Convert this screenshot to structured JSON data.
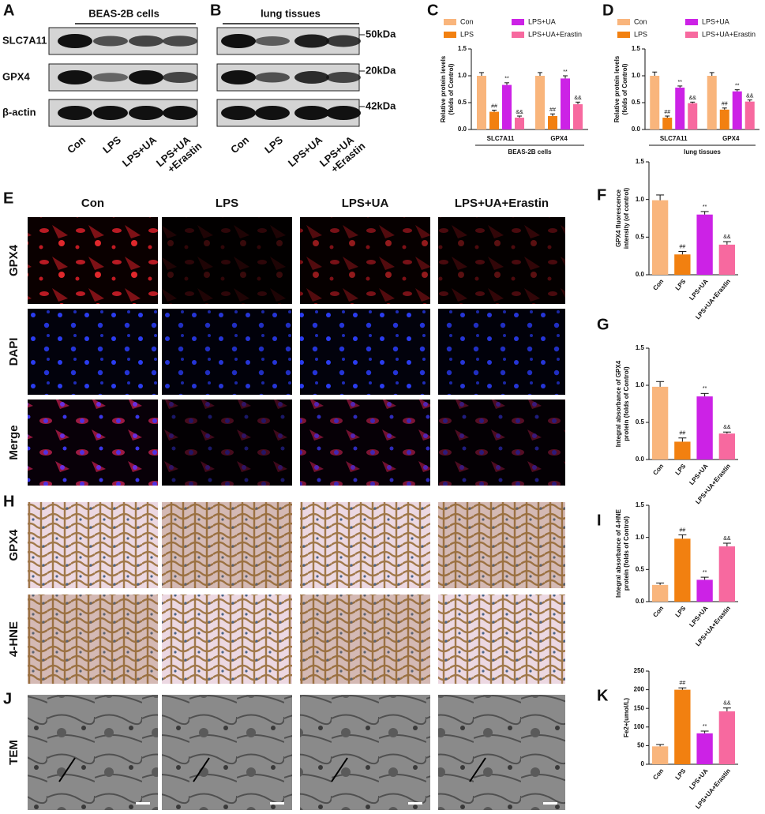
{
  "blots": [
    {
      "letter": "A",
      "title": "BEAS-2B cells",
      "rows": [
        "SLC7A11",
        "GPX4",
        "β-actin"
      ],
      "lanes": [
        [
          "Con"
        ],
        [
          "LPS"
        ],
        [
          "LPS+UA"
        ],
        [
          "LPS+UA",
          "+Erastin"
        ]
      ]
    },
    {
      "letter": "B",
      "title": "lung tissues",
      "markers": [
        "50kDa",
        "20kDa",
        "42kDa"
      ],
      "lanes": [
        [
          "Con"
        ],
        [
          "LPS"
        ],
        [
          "LPS+UA"
        ],
        [
          "LPS+UA",
          "+Erastin"
        ]
      ]
    }
  ],
  "images": [
    {
      "letter": "E",
      "columns": [
        "Con",
        "LPS",
        "LPS+UA",
        "LPS+UA+Erastin"
      ],
      "rows": [
        "GPX4",
        "DAPI",
        "Merge"
      ]
    },
    {
      "letter": "H",
      "rows": [
        "GPX4",
        "4-HNE"
      ]
    },
    {
      "letter": "J",
      "rows": [
        "TEM"
      ]
    }
  ],
  "chart_data": [
    {
      "letter": "C",
      "type": "grouped_bar",
      "categories": [
        "SLC7A11",
        "GPX4"
      ],
      "xlabel": "BEAS-2B cells",
      "ylabel": [
        "Relative protein levels",
        "(folds of Control)"
      ],
      "ylim": [
        0,
        1.5
      ],
      "yticks": [
        {
          "value": 0,
          "label": "0.0"
        },
        0.5,
        {
          "value": 1,
          "label": "1.0"
        },
        1.5
      ],
      "legend": "top",
      "series": [
        {
          "name": "Con",
          "color": "#f9b57c",
          "values": [
            1.0,
            1.0
          ],
          "errors": [
            0.06,
            0.06
          ]
        },
        {
          "name": "LPS",
          "color": "#f28010",
          "values": [
            0.33,
            0.25
          ],
          "errors": [
            0.03,
            0.04
          ],
          "significance": [
            "##",
            "##"
          ]
        },
        {
          "name": "LPS+UA",
          "color": "#cc22e6",
          "values": [
            0.83,
            0.95
          ],
          "errors": [
            0.04,
            0.05
          ],
          "significance": [
            "**",
            "**"
          ]
        },
        {
          "name": "LPS+UA+Erastin",
          "color": "#f7699f",
          "values": [
            0.22,
            0.47
          ],
          "errors": [
            0.03,
            0.04
          ],
          "significance": [
            "&&",
            "&&"
          ]
        }
      ]
    },
    {
      "letter": "D",
      "type": "grouped_bar",
      "categories": [
        "SLC7A11",
        "GPX4"
      ],
      "xlabel": "lung tissues",
      "ylabel": [
        "Relative protein levels",
        "(folds of Control)"
      ],
      "ylim": [
        0,
        1.5
      ],
      "yticks": [
        {
          "value": 0,
          "label": "0.0"
        },
        0.5,
        {
          "value": 1,
          "label": "1.0"
        },
        1.5
      ],
      "legend": "top",
      "series": [
        {
          "name": "Con",
          "color": "#f9b57c",
          "values": [
            1.0,
            1.0
          ],
          "errors": [
            0.07,
            0.06
          ]
        },
        {
          "name": "LPS",
          "color": "#f28010",
          "values": [
            0.22,
            0.37
          ],
          "errors": [
            0.03,
            0.03
          ],
          "significance": [
            "##",
            "##"
          ]
        },
        {
          "name": "LPS+UA",
          "color": "#cc22e6",
          "values": [
            0.78,
            0.71
          ],
          "errors": [
            0.03,
            0.03
          ],
          "significance": [
            "**",
            "**"
          ]
        },
        {
          "name": "LPS+UA+Erastin",
          "color": "#f7699f",
          "values": [
            0.49,
            0.52
          ],
          "errors": [
            0.02,
            0.03
          ],
          "significance": [
            "&&",
            "&&"
          ]
        }
      ]
    },
    {
      "letter": "F",
      "type": "bar",
      "categories": [
        "Con",
        "LPS",
        "LPS+UA",
        "LPS+UA+Erastin"
      ],
      "ylabel": [
        "GPX4 fluorescence",
        "intensity (of control)"
      ],
      "ylim": [
        0,
        1.5
      ],
      "yticks": [
        {
          "value": 0,
          "label": "0.0"
        },
        0.5,
        {
          "value": 1,
          "label": "1.0"
        },
        1.5
      ],
      "values": [
        0.99,
        0.27,
        0.8,
        0.4
      ],
      "errors": [
        0.07,
        0.04,
        0.04,
        0.04
      ],
      "colors": [
        "#f9b57c",
        "#f28010",
        "#cc22e6",
        "#f7699f"
      ],
      "significance": [
        null,
        "##",
        "**",
        "&&"
      ]
    },
    {
      "letter": "G",
      "type": "bar",
      "categories": [
        "Con",
        "LPS",
        "LPS+UA",
        "LPS+UA+Erastin"
      ],
      "ylabel": [
        "Integral absorbance of GPX4",
        "protein (folds of Control)"
      ],
      "ylim": [
        0,
        1.5
      ],
      "yticks": [
        {
          "value": 0,
          "label": "0.0"
        },
        0.5,
        {
          "value": 1,
          "label": "1.0"
        },
        1.5
      ],
      "values": [
        0.98,
        0.24,
        0.85,
        0.35
      ],
      "errors": [
        0.07,
        0.05,
        0.04,
        0.02
      ],
      "colors": [
        "#f9b57c",
        "#f28010",
        "#cc22e6",
        "#f7699f"
      ],
      "significance": [
        null,
        "##",
        "**",
        "&&"
      ]
    },
    {
      "letter": "I",
      "type": "bar",
      "categories": [
        "Con",
        "LPS",
        "LPS+UA",
        "LPS+UA+Erastin"
      ],
      "ylabel": [
        "Integral absorbance of 4-HNE",
        "protein (folds of Control)"
      ],
      "ylim": [
        0,
        1.5
      ],
      "yticks": [
        {
          "value": 0,
          "label": "0.0"
        },
        0.5,
        {
          "value": 1,
          "label": "1.0"
        },
        1.5
      ],
      "values": [
        0.26,
        0.98,
        0.34,
        0.86
      ],
      "errors": [
        0.03,
        0.06,
        0.04,
        0.05
      ],
      "colors": [
        "#f9b57c",
        "#f28010",
        "#cc22e6",
        "#f7699f"
      ],
      "significance": [
        null,
        "##",
        "**",
        "&&"
      ]
    },
    {
      "letter": "K",
      "type": "bar",
      "categories": [
        "Con",
        "LPS",
        "LPS+UA",
        "LPS+UA+Erastin"
      ],
      "ylabel": [
        "Fe2+(umol/L)"
      ],
      "ylim": [
        0,
        250
      ],
      "yticks": [
        0,
        50,
        100,
        150,
        200,
        250
      ],
      "values": [
        48,
        200,
        83,
        142
      ],
      "errors": [
        5,
        5,
        6,
        9
      ],
      "colors": [
        "#f9b57c",
        "#f28010",
        "#cc22e6",
        "#f7699f"
      ],
      "significance": [
        null,
        "##",
        "**",
        "&&"
      ]
    }
  ]
}
